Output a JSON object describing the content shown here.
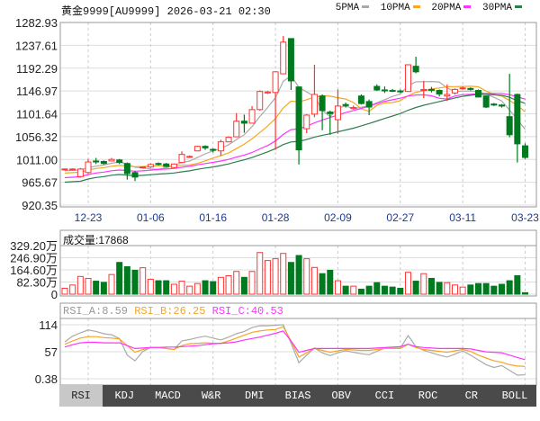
{
  "header": {
    "title": "黄金9999[AU9999] 2026-03-21 02:30"
  },
  "legend": [
    {
      "label": "5PMA",
      "color": "#aaaaaa"
    },
    {
      "label": "10PMA",
      "color": "#f5a623"
    },
    {
      "label": "20PMA",
      "color": "#ff33ff"
    },
    {
      "label": "30PMA",
      "color": "#2e7d4f"
    }
  ],
  "colors": {
    "up": "#ff3333",
    "down": "#007a1f"
  },
  "chart_data": [
    {
      "type": "candlestick",
      "ylim": [
        920.35,
        1282.93
      ],
      "yticks": [
        "1282.93",
        "1237.61",
        "1192.29",
        "1146.97",
        "1101.64",
        "1056.32",
        "1011.00",
        "965.67",
        "920.35"
      ],
      "xticks": [
        {
          "index": 3,
          "label": "12-23"
        },
        {
          "index": 11,
          "label": "01-06"
        },
        {
          "index": 19,
          "label": "01-16"
        },
        {
          "index": 27,
          "label": "01-28"
        },
        {
          "index": 35,
          "label": "02-09"
        },
        {
          "index": 43,
          "label": "02-27"
        },
        {
          "index": 51,
          "label": "03-11"
        },
        {
          "index": 59,
          "label": "03-23"
        }
      ],
      "ma_periods": [
        5,
        10,
        20,
        30
      ],
      "ohlc": [
        [
          991,
          993,
          989,
          992
        ],
        [
          991,
          993,
          989,
          992
        ],
        [
          977,
          994,
          975,
          992
        ],
        [
          985,
          1012,
          983,
          1006
        ],
        [
          1008,
          1014,
          1002,
          1006
        ],
        [
          1007,
          1009,
          1001,
          1003
        ],
        [
          1008,
          1014,
          1007,
          1011
        ],
        [
          1010,
          1012,
          1002,
          1005
        ],
        [
          1003,
          1005,
          971,
          983
        ],
        [
          985,
          988,
          968,
          976
        ],
        [
          995,
          997,
          993,
          996
        ],
        [
          996,
          1003,
          994,
          1001
        ],
        [
          1003,
          1005,
          999,
          1002
        ],
        [
          1002,
          1004,
          996,
          997
        ],
        [
          995,
          1003,
          994,
          1002
        ],
        [
          1005,
          1027,
          1004,
          1021
        ],
        [
          1016,
          1019,
          1015,
          1017
        ],
        [
          1028,
          1038,
          1027,
          1037
        ],
        [
          1037,
          1039,
          1030,
          1034
        ],
        [
          1031,
          1033,
          1025,
          1030
        ],
        [
          1028,
          1050,
          1018,
          1046
        ],
        [
          1046,
          1057,
          1045,
          1055
        ],
        [
          1056,
          1103,
          1055,
          1087
        ],
        [
          1087,
          1100,
          1064,
          1083
        ],
        [
          1083,
          1117,
          1082,
          1110
        ],
        [
          1110,
          1148,
          1108,
          1146
        ],
        [
          1143,
          1147,
          1141,
          1145
        ],
        [
          1144,
          1186,
          1030,
          1185
        ],
        [
          1181,
          1256,
          1180,
          1244
        ],
        [
          1251,
          1251,
          1149,
          1167
        ],
        [
          1155,
          1155,
          1001,
          1030
        ],
        [
          1072,
          1101,
          1063,
          1099
        ],
        [
          1101,
          1199,
          1095,
          1140
        ],
        [
          1137,
          1140,
          1069,
          1108
        ],
        [
          1105,
          1108,
          1060,
          1102
        ],
        [
          1090,
          1150,
          1062,
          1117
        ],
        [
          1120,
          1124,
          1114,
          1118
        ],
        [
          1112,
          1118,
          1110,
          1114
        ],
        [
          1137,
          1140,
          1120,
          1122
        ],
        [
          1126,
          1130,
          1099,
          1115
        ],
        [
          1156,
          1160,
          1147,
          1149
        ],
        [
          1149,
          1156,
          1143,
          1148
        ],
        [
          1148,
          1151,
          1145,
          1147
        ],
        [
          1147,
          1150,
          1143,
          1146
        ],
        [
          1146,
          1200,
          1145,
          1199
        ],
        [
          1196,
          1215,
          1182,
          1185
        ],
        [
          1148,
          1167,
          1133,
          1150
        ],
        [
          1150,
          1155,
          1144,
          1149
        ],
        [
          1148,
          1150,
          1136,
          1141
        ],
        [
          1137,
          1160,
          1127,
          1140
        ],
        [
          1143,
          1152,
          1140,
          1150
        ],
        [
          1152,
          1156,
          1150,
          1153
        ],
        [
          1152,
          1154,
          1148,
          1150
        ],
        [
          1148,
          1150,
          1134,
          1135
        ],
        [
          1137,
          1138,
          1113,
          1115
        ],
        [
          1121,
          1123,
          1117,
          1119
        ],
        [
          1119,
          1121,
          1114,
          1117
        ],
        [
          1096,
          1181,
          1055,
          1060
        ],
        [
          1140,
          1142,
          1005,
          1042
        ],
        [
          1038,
          1043,
          1012,
          1015
        ]
      ]
    },
    {
      "type": "bar",
      "title": "成交量:17868",
      "unit": "万",
      "ylim": [
        0,
        329.2
      ],
      "yticks": [
        "329.20万",
        "246.90万",
        "164.60万",
        "82.30万",
        "0"
      ],
      "values": [
        40,
        62,
        120,
        107,
        88,
        80,
        133,
        215,
        186,
        162,
        179,
        101,
        91,
        91,
        67,
        88,
        54,
        72,
        91,
        85,
        114,
        125,
        154,
        114,
        154,
        282,
        228,
        240,
        276,
        215,
        262,
        240,
        181,
        139,
        162,
        91,
        54,
        54,
        34,
        54,
        78,
        54,
        48,
        40,
        148,
        88,
        139,
        107,
        80,
        78,
        62,
        48,
        62,
        72,
        72,
        54,
        67,
        91,
        125,
        10
      ]
    },
    {
      "type": "line",
      "ylim": [
        0.38,
        114
      ],
      "yticks": [
        "114",
        "57",
        "0.38"
      ],
      "series": [
        {
          "name": "RSI_A",
          "label": "RSI_A:8.59",
          "color": "#aaaaaa",
          "values": [
            78,
            90,
            97,
            103,
            100,
            95,
            93,
            85,
            50,
            38,
            58,
            66,
            66,
            64,
            62,
            80,
            83,
            87,
            90,
            86,
            82,
            88,
            95,
            100,
            108,
            112,
            112,
            113,
            114,
            75,
            34,
            50,
            65,
            55,
            49,
            55,
            59,
            56,
            53,
            51,
            58,
            65,
            65,
            65,
            91,
            68,
            60,
            55,
            50,
            46,
            52,
            59,
            50,
            40,
            30,
            24,
            28,
            18,
            8,
            8.59
          ]
        },
        {
          "name": "RSI_B",
          "label": "RSI_B:26.25",
          "color": "#f5a623",
          "values": [
            73,
            80,
            86,
            89,
            89,
            87,
            86,
            84,
            70,
            56,
            62,
            66,
            66,
            64,
            62,
            70,
            74,
            75,
            76,
            75,
            75,
            80,
            86,
            92,
            98,
            101,
            103,
            104,
            110,
            80,
            46,
            55,
            65,
            60,
            56,
            59,
            62,
            61,
            60,
            60,
            62,
            64,
            64,
            64,
            73,
            66,
            62,
            60,
            58,
            56,
            59,
            62,
            58,
            50,
            44,
            38,
            35,
            30,
            27,
            26.25
          ]
        },
        {
          "name": "RSI_C",
          "label": "RSI_C:40.53",
          "color": "#ff33ff",
          "values": [
            67,
            72,
            76,
            77,
            77,
            76,
            76,
            76,
            70,
            64,
            65,
            66,
            66,
            67,
            67,
            68,
            69,
            70,
            72,
            74,
            75,
            76,
            78,
            82,
            85,
            88,
            92,
            96,
            101,
            80,
            56,
            60,
            64,
            64,
            64,
            64,
            64,
            64,
            64,
            64,
            65,
            66,
            67,
            68,
            73,
            68,
            66,
            65,
            64,
            64,
            64,
            64,
            63,
            60,
            57,
            56,
            55,
            50,
            45,
            40.53
          ]
        }
      ]
    }
  ],
  "tabs": [
    {
      "label": "RSI",
      "active": true
    },
    {
      "label": "KDJ"
    },
    {
      "label": "MACD"
    },
    {
      "label": "W&R"
    },
    {
      "label": "DMI"
    },
    {
      "label": "BIAS"
    },
    {
      "label": "OBV"
    },
    {
      "label": "CCI"
    },
    {
      "label": "ROC"
    },
    {
      "label": "CR"
    },
    {
      "label": "BOLL"
    }
  ]
}
